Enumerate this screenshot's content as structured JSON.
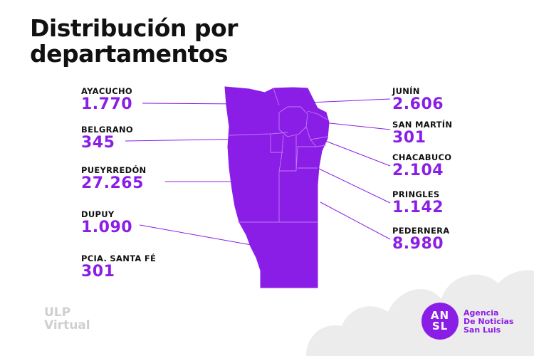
{
  "title": {
    "line1": "Distribución por",
    "line2": "departamentos"
  },
  "departments_left": [
    {
      "name": "AYACUCHO",
      "value": "1.770"
    },
    {
      "name": "BELGRANO",
      "value": "345"
    },
    {
      "name": "PUEYRREDÓN",
      "value": "27.265"
    },
    {
      "name": "DUPUY",
      "value": "1.090"
    },
    {
      "name": "PCIA. SANTA FÉ",
      "value": "301"
    }
  ],
  "departments_right": [
    {
      "name": "JUNÍN",
      "value": "2.606"
    },
    {
      "name": "SAN MARTÍN",
      "value": "301"
    },
    {
      "name": "CHACABUCO",
      "value": "2.104"
    },
    {
      "name": "PRINGLES",
      "value": "1.142"
    },
    {
      "name": "PEDERNERA",
      "value": "8.980"
    }
  ],
  "logos": {
    "ulp_line1": "ULP",
    "ulp_line2": "Virtual",
    "ansl_line1": "AN",
    "ansl_line2": "SL",
    "agency_line1": "Agencia",
    "agency_line2": "De Noticias",
    "agency_line3": "San Luis"
  },
  "colors": {
    "accent": "#8b1ee6",
    "text": "#111111",
    "cloud": "#e8e8e8"
  }
}
